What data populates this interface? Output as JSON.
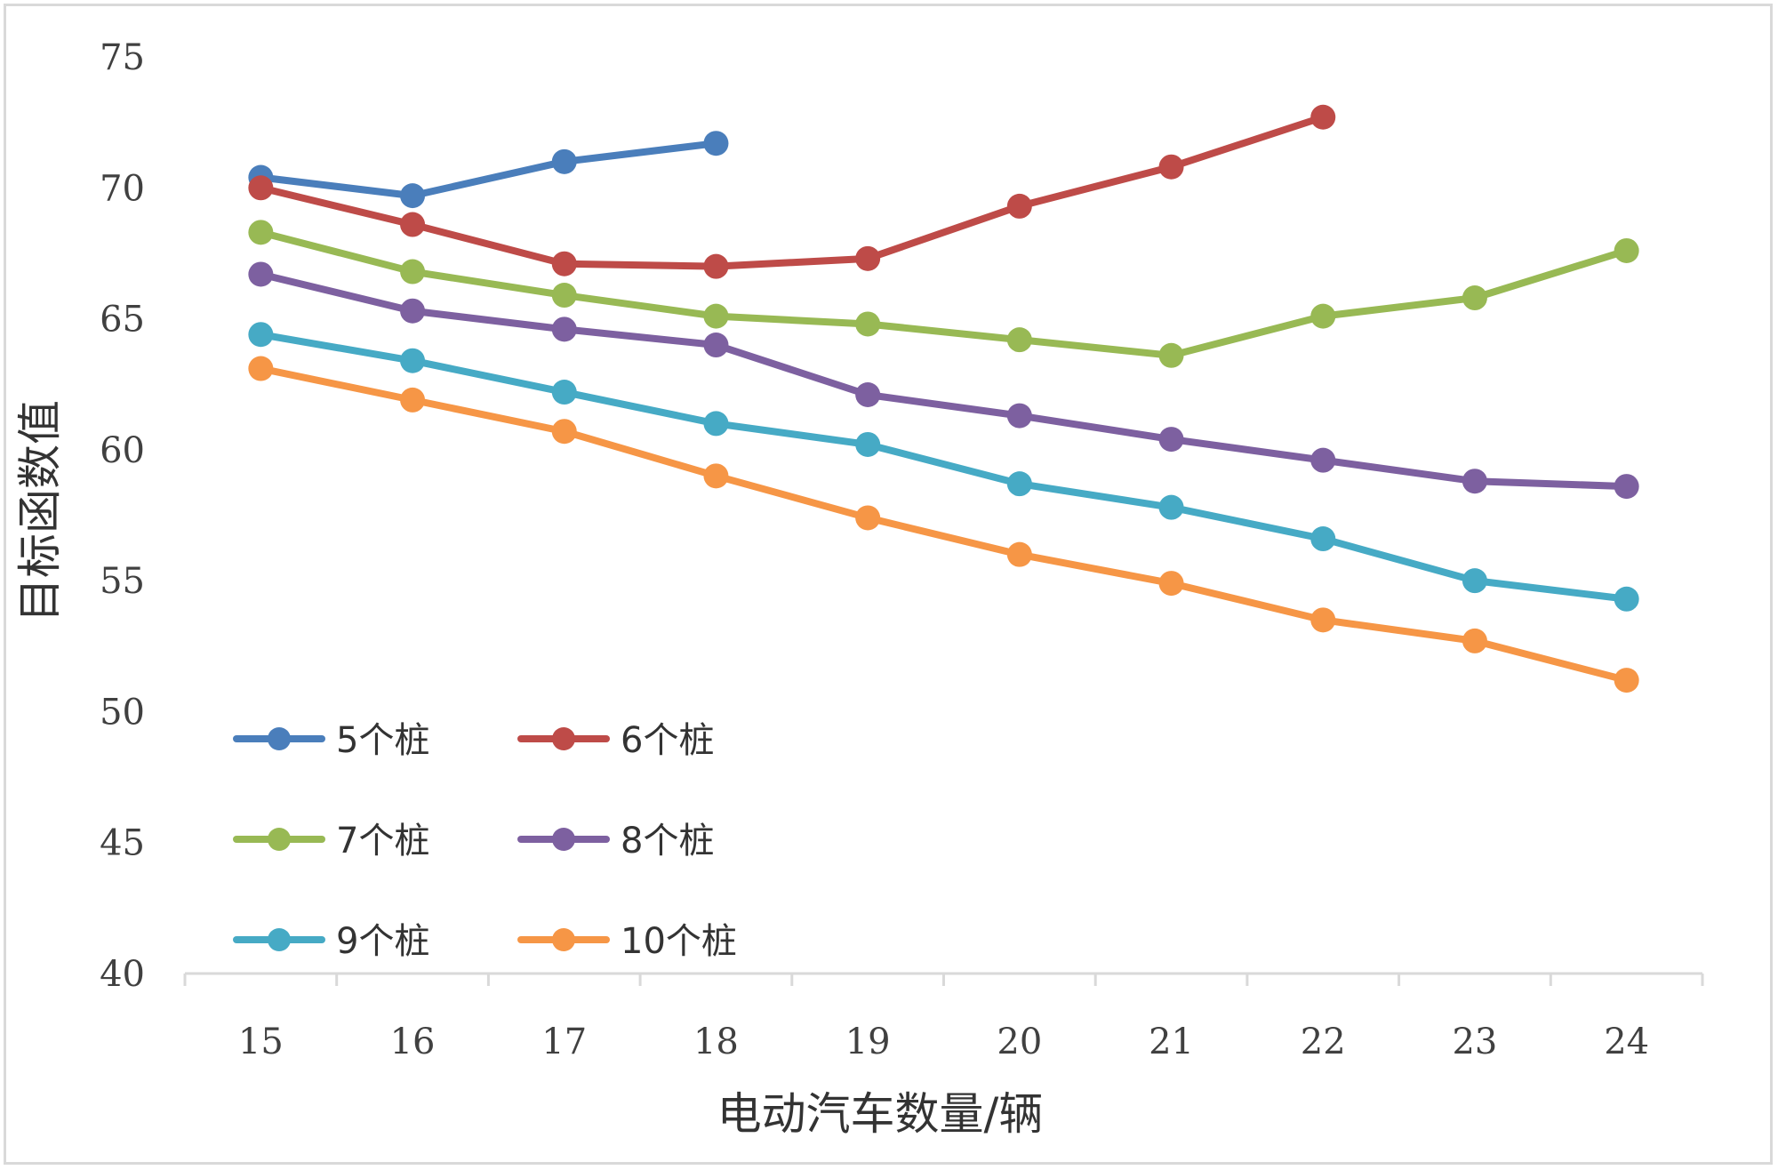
{
  "chart_data": {
    "type": "line",
    "title": "",
    "xlabel": "电动汽车数量/辆",
    "ylabel": "目标函数值",
    "x": [
      15,
      16,
      17,
      18,
      19,
      20,
      21,
      22,
      23,
      24
    ],
    "x_tick_labels": [
      "15",
      "16",
      "17",
      "18",
      "19",
      "20",
      "21",
      "22",
      "23",
      "24"
    ],
    "ylim": [
      40,
      75
    ],
    "y_ticks": [
      40,
      45,
      50,
      55,
      60,
      65,
      70,
      75
    ],
    "y_tick_labels": [
      "40",
      "45",
      "50",
      "55",
      "60",
      "65",
      "70",
      "75"
    ],
    "grid": false,
    "legend_position": "bottom-left",
    "series": [
      {
        "name": "5个桩",
        "color": "#4a7ebb",
        "values": [
          70.4,
          69.7,
          71.0,
          71.7,
          null,
          null,
          null,
          null,
          null,
          null
        ]
      },
      {
        "name": "6个桩",
        "color": "#be4b48",
        "values": [
          70.0,
          68.6,
          67.1,
          67.0,
          67.3,
          69.3,
          70.8,
          72.7,
          null,
          null
        ]
      },
      {
        "name": "7个桩",
        "color": "#98b954",
        "values": [
          68.3,
          66.8,
          65.9,
          65.1,
          64.8,
          64.2,
          63.6,
          65.1,
          65.8,
          67.6
        ]
      },
      {
        "name": "8个桩",
        "color": "#7d60a0",
        "values": [
          66.7,
          65.3,
          64.6,
          64.0,
          62.1,
          61.3,
          60.4,
          59.6,
          58.8,
          58.6
        ]
      },
      {
        "name": "9个桩",
        "color": "#46aac5",
        "values": [
          64.4,
          63.4,
          62.2,
          61.0,
          60.2,
          58.7,
          57.8,
          56.6,
          55.0,
          54.3
        ]
      },
      {
        "name": "10个桩",
        "color": "#f69646",
        "values": [
          63.1,
          61.9,
          60.7,
          59.0,
          57.4,
          56.0,
          54.9,
          53.5,
          52.7,
          51.2
        ]
      }
    ]
  }
}
